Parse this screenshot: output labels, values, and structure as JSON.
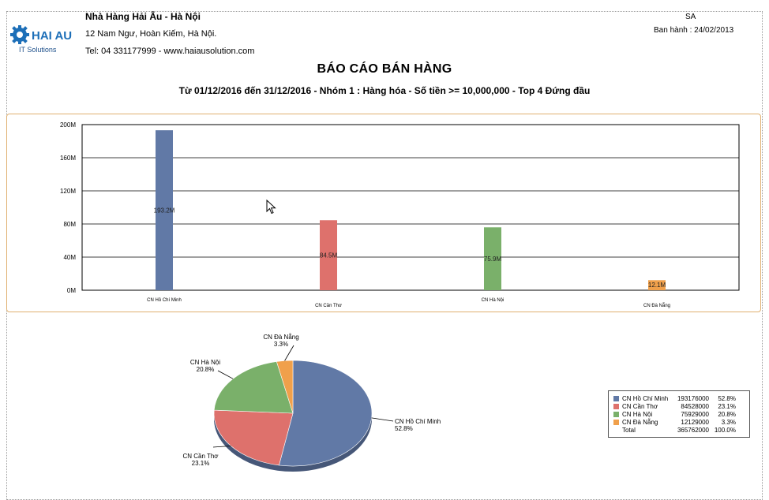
{
  "header": {
    "company_name": "Nhà Hàng Hải Âu - Hà Nội",
    "address": "12 Nam Ngư, Hoàn Kiếm, Hà Nội.",
    "contact": "Tel: 04 331177999 - www.haiausolution.com",
    "logo_text": "HAI AU",
    "logo_subtext": "IT Solutions",
    "user_code": "SA",
    "issue_date": "Ban hành : 24/02/2013"
  },
  "report": {
    "title": "BÁO CÁO BÁN HÀNG",
    "subtitle": "Từ 01/12/2016 đến 31/12/2016 - Nhóm 1 : Hàng hóa - Số tiền >= 10,000,000 - Top 4 Đứng đầu"
  },
  "colors": {
    "blue": "#6179a6",
    "red": "#de716c",
    "green": "#7ab06a",
    "orange": "#f0a04b"
  },
  "chart_data": [
    {
      "type": "bar",
      "categories": [
        "CN Hồ Chí Minh",
        "CN Cần Thơ",
        "CN Hà Nội",
        "CN Đà Nẵng"
      ],
      "values": [
        193176000,
        84528000,
        75929000,
        12129000
      ],
      "data_labels": [
        "193.2M",
        "84.5M",
        "75.9M",
        "12.1M"
      ],
      "y_ticks": [
        "0M",
        "40M",
        "80M",
        "120M",
        "160M",
        "200M"
      ],
      "ylim": [
        0,
        200000000
      ],
      "grid": true,
      "colors": [
        "#6179a6",
        "#de716c",
        "#7ab06a",
        "#f0a04b"
      ]
    },
    {
      "type": "pie",
      "labels": [
        "CN Hồ Chí Minh",
        "CN Cần Thơ",
        "CN Hà Nội",
        "CN Đà Nẵng"
      ],
      "values": [
        193176000,
        84528000,
        75929000,
        12129000
      ],
      "percent_labels": [
        "52.8%",
        "23.1%",
        "20.8%",
        "3.3%"
      ],
      "colors": [
        "#6179a6",
        "#de716c",
        "#7ab06a",
        "#f0a04b"
      ],
      "legend": {
        "placement": "bottom-right",
        "rows": [
          {
            "name": "CN Hồ Chí Minh",
            "value": "193176000",
            "pct": "52.8%"
          },
          {
            "name": "CN Cần Thơ",
            "value": "84528000",
            "pct": "23.1%"
          },
          {
            "name": "CN Hà Nội",
            "value": "75929000",
            "pct": "20.8%"
          },
          {
            "name": "CN Đà Nẵng",
            "value": "12129000",
            "pct": "3.3%"
          }
        ],
        "total": {
          "name": "Total",
          "value": "365762000",
          "pct": "100.0%"
        }
      }
    }
  ]
}
